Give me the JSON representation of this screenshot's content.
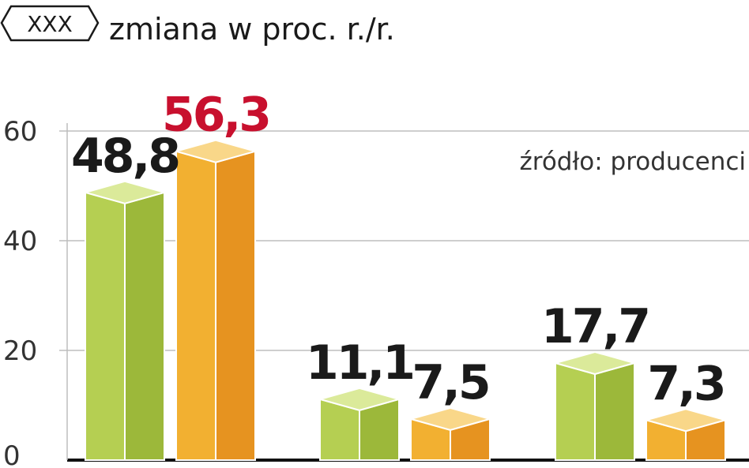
{
  "header": {
    "tag": "XXX",
    "subtitle": "zmiana w proc. r./r."
  },
  "source": "źródło: producenci",
  "colors": {
    "green_front": "#b5cf52",
    "green_side": "#9cb83a",
    "green_top": "#dbea9a",
    "orange_front": "#f2b031",
    "orange_side": "#e69320",
    "orange_top": "#f9d789",
    "highlight_label": "#c8102e",
    "label": "#1a1a1a"
  },
  "chart_data": {
    "type": "bar",
    "ylim": [
      0,
      60
    ],
    "yticks": [
      "0",
      "20",
      "40",
      "60"
    ],
    "grid": true,
    "categories": [
      "",
      "",
      ""
    ],
    "series": [
      {
        "values": [
          48.8,
          11.1,
          17.7
        ],
        "labels": [
          "48,8",
          "11,1",
          "17,7"
        ]
      },
      {
        "values": [
          56.3,
          7.5,
          7.3
        ],
        "labels": [
          "56,3",
          "7,5",
          "7,3"
        ]
      }
    ],
    "highlight": {
      "series": 1,
      "index": 0
    }
  }
}
